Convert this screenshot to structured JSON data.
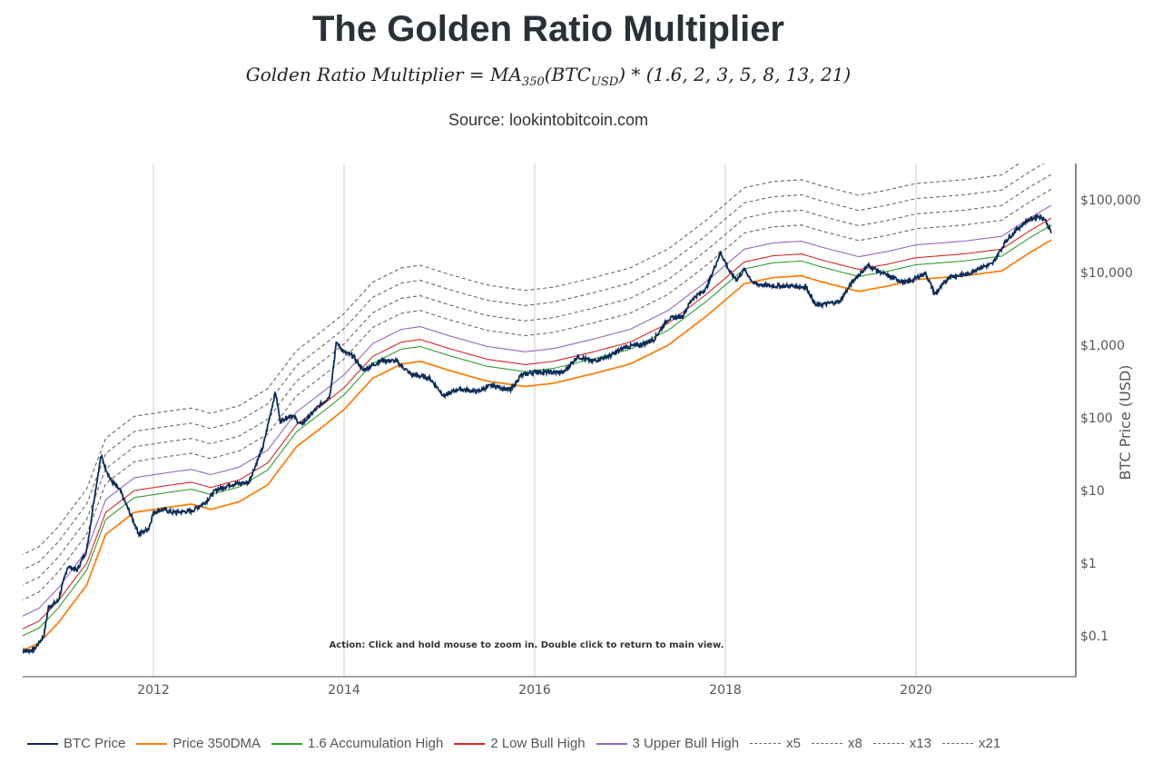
{
  "header": {
    "title": "The Golden Ratio Multiplier",
    "formula": "Golden Ratio Multiplier = MA350(BTCUSD) * (1.6, 2, 3, 5, 8, 13, 21)",
    "source": "Source: lookintobitcoin.com"
  },
  "hint": "Action: Click and hold mouse to zoom in. Double click to return to main view.",
  "chart_data": {
    "type": "line",
    "title": "The Golden Ratio Multiplier",
    "ylabel": "BTC Price (USD)",
    "yscale": "log",
    "ylim": [
      0.03,
      350000
    ],
    "xlim": [
      2010.55,
      2021.6
    ],
    "x_ticks": [
      "2012",
      "2014",
      "2016",
      "2018",
      "2020"
    ],
    "y_ticks": [
      "$0.1",
      "$1",
      "$10",
      "$100",
      "$1,000",
      "$10,000",
      "$100,000"
    ],
    "grid": "vertical",
    "legend_position": "bottom",
    "btc_price": [
      [
        2010.6,
        0.06
      ],
      [
        2010.75,
        0.065
      ],
      [
        2010.85,
        0.1
      ],
      [
        2010.9,
        0.25
      ],
      [
        2011.0,
        0.3
      ],
      [
        2011.1,
        0.9
      ],
      [
        2011.2,
        0.8
      ],
      [
        2011.3,
        1.5
      ],
      [
        2011.38,
        8
      ],
      [
        2011.45,
        30
      ],
      [
        2011.55,
        14
      ],
      [
        2011.65,
        10
      ],
      [
        2011.75,
        5
      ],
      [
        2011.85,
        2.5
      ],
      [
        2011.95,
        3
      ],
      [
        2012.0,
        5
      ],
      [
        2012.1,
        5.5
      ],
      [
        2012.2,
        5
      ],
      [
        2012.4,
        5.2
      ],
      [
        2012.55,
        7
      ],
      [
        2012.65,
        10
      ],
      [
        2012.8,
        12
      ],
      [
        2013.0,
        13
      ],
      [
        2013.15,
        40
      ],
      [
        2013.28,
        230
      ],
      [
        2013.33,
        90
      ],
      [
        2013.45,
        110
      ],
      [
        2013.55,
        80
      ],
      [
        2013.7,
        130
      ],
      [
        2013.85,
        200
      ],
      [
        2013.92,
        1100
      ],
      [
        2014.0,
        800
      ],
      [
        2014.1,
        700
      ],
      [
        2014.2,
        450
      ],
      [
        2014.4,
        620
      ],
      [
        2014.55,
        600
      ],
      [
        2014.7,
        400
      ],
      [
        2014.9,
        350
      ],
      [
        2015.05,
        200
      ],
      [
        2015.2,
        250
      ],
      [
        2015.4,
        230
      ],
      [
        2015.55,
        280
      ],
      [
        2015.75,
        240
      ],
      [
        2015.85,
        380
      ],
      [
        2016.0,
        430
      ],
      [
        2016.3,
        420
      ],
      [
        2016.45,
        700
      ],
      [
        2016.6,
        600
      ],
      [
        2016.8,
        720
      ],
      [
        2016.95,
        950
      ],
      [
        2017.1,
        1000
      ],
      [
        2017.25,
        1200
      ],
      [
        2017.4,
        2300
      ],
      [
        2017.55,
        2500
      ],
      [
        2017.65,
        4300
      ],
      [
        2017.8,
        6000
      ],
      [
        2017.95,
        19000
      ],
      [
        2018.05,
        10000
      ],
      [
        2018.12,
        8000
      ],
      [
        2018.2,
        11000
      ],
      [
        2018.3,
        7000
      ],
      [
        2018.5,
        6500
      ],
      [
        2018.7,
        6500
      ],
      [
        2018.85,
        6300
      ],
      [
        2018.95,
        3500
      ],
      [
        2019.2,
        4000
      ],
      [
        2019.35,
        8000
      ],
      [
        2019.5,
        12500
      ],
      [
        2019.7,
        9000
      ],
      [
        2019.9,
        7200
      ],
      [
        2020.1,
        9800
      ],
      [
        2020.2,
        5000
      ],
      [
        2020.35,
        8800
      ],
      [
        2020.55,
        9500
      ],
      [
        2020.65,
        11500
      ],
      [
        2020.8,
        13000
      ],
      [
        2020.95,
        28000
      ],
      [
        2021.05,
        38000
      ],
      [
        2021.15,
        50000
      ],
      [
        2021.28,
        60000
      ],
      [
        2021.35,
        55000
      ],
      [
        2021.42,
        35000
      ]
    ],
    "ma350": [
      [
        2010.6,
        0.06
      ],
      [
        2010.8,
        0.08
      ],
      [
        2011.0,
        0.15
      ],
      [
        2011.3,
        0.5
      ],
      [
        2011.5,
        2.5
      ],
      [
        2011.8,
        5
      ],
      [
        2012.2,
        6
      ],
      [
        2012.4,
        6.5
      ],
      [
        2012.6,
        5.5
      ],
      [
        2012.9,
        7
      ],
      [
        2013.2,
        12
      ],
      [
        2013.5,
        40
      ],
      [
        2013.8,
        80
      ],
      [
        2014.0,
        130
      ],
      [
        2014.3,
        350
      ],
      [
        2014.6,
        550
      ],
      [
        2014.8,
        600
      ],
      [
        2015.1,
        450
      ],
      [
        2015.5,
        320
      ],
      [
        2015.9,
        270
      ],
      [
        2016.2,
        300
      ],
      [
        2016.6,
        400
      ],
      [
        2017.0,
        550
      ],
      [
        2017.4,
        1000
      ],
      [
        2017.8,
        2500
      ],
      [
        2018.2,
        7000
      ],
      [
        2018.5,
        8500
      ],
      [
        2018.8,
        9000
      ],
      [
        2019.0,
        7500
      ],
      [
        2019.4,
        5500
      ],
      [
        2019.7,
        6500
      ],
      [
        2020.0,
        8000
      ],
      [
        2020.5,
        9000
      ],
      [
        2020.9,
        10500
      ],
      [
        2021.2,
        19000
      ],
      [
        2021.42,
        28000
      ]
    ],
    "series": [
      {
        "name": "BTC Price",
        "source": "btc_price",
        "color": "#0b2c5a",
        "style": "solid"
      },
      {
        "name": "Price 350DMA",
        "multiplier": 1,
        "color": "#ff7f0e",
        "style": "solid"
      },
      {
        "name": "1.6 Accumulation High",
        "multiplier": 1.6,
        "color": "#2ca02c",
        "style": "solid"
      },
      {
        "name": "2 Low Bull High",
        "multiplier": 2,
        "color": "#d62728",
        "style": "solid"
      },
      {
        "name": "3 Upper Bull High",
        "multiplier": 3,
        "color": "#9467bd",
        "style": "solid"
      },
      {
        "name": "x5",
        "multiplier": 5,
        "color": "#666666",
        "style": "dashed"
      },
      {
        "name": "x8",
        "multiplier": 8,
        "color": "#666666",
        "style": "dashed"
      },
      {
        "name": "x13",
        "multiplier": 13,
        "color": "#666666",
        "style": "dashed"
      },
      {
        "name": "x21",
        "multiplier": 21,
        "color": "#666666",
        "style": "dashed"
      }
    ]
  }
}
